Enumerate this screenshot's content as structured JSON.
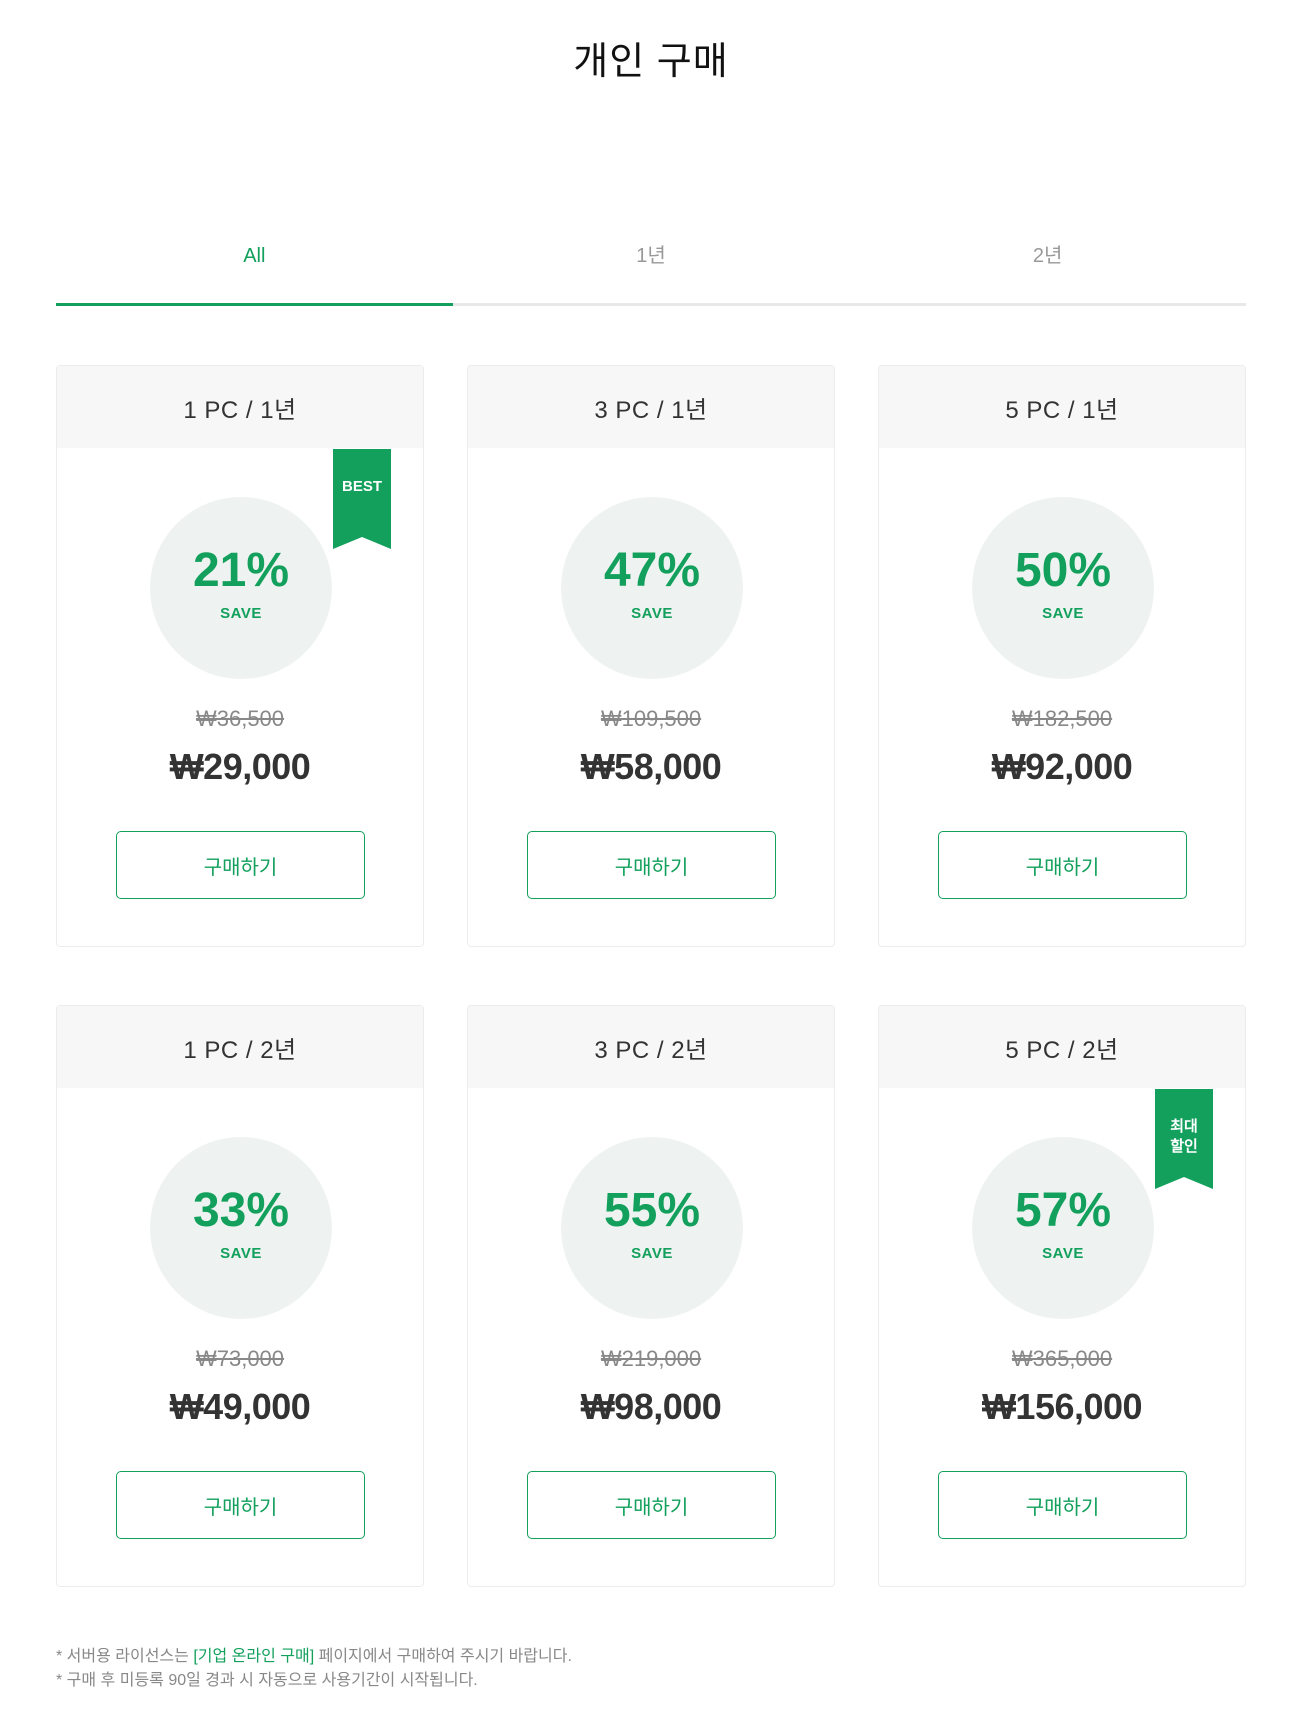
{
  "page_title": "개인 구매",
  "tabs": [
    {
      "label": "All",
      "active": true
    },
    {
      "label": "1년",
      "active": false
    },
    {
      "label": "2년",
      "active": false
    }
  ],
  "save_label": "SAVE",
  "buy_label": "구매하기",
  "cards": [
    {
      "title": "1 PC / 1년",
      "save": "21%",
      "original_price": "₩36,500",
      "price": "₩29,000",
      "ribbon": "BEST"
    },
    {
      "title": "3 PC / 1년",
      "save": "47%",
      "original_price": "₩109,500",
      "price": "₩58,000",
      "ribbon": ""
    },
    {
      "title": "5 PC / 1년",
      "save": "50%",
      "original_price": "₩182,500",
      "price": "₩92,000",
      "ribbon": ""
    },
    {
      "title": "1 PC / 2년",
      "save": "33%",
      "original_price": "₩73,000",
      "price": "₩49,000",
      "ribbon": ""
    },
    {
      "title": "3 PC / 2년",
      "save": "55%",
      "original_price": "₩219,000",
      "price": "₩98,000",
      "ribbon": ""
    },
    {
      "title": "5 PC / 2년",
      "save": "57%",
      "original_price": "₩365,000",
      "price": "₩156,000",
      "ribbon": "최대\n할인"
    }
  ],
  "notes": {
    "line1_prefix": "* 서버용 라이선스는 ",
    "line1_link": "[기업 온라인 구매]",
    "line1_suffix": " 페이지에서 구매하여 주시기 바랍니다.",
    "line2": "* 구매 후 미등록 90일 경과 시 자동으로 사용기간이 시작됩니다."
  },
  "colors": {
    "accent": "#12a05c",
    "circle_bg": "#eef3f1",
    "header_bg": "#f7f7f7"
  }
}
